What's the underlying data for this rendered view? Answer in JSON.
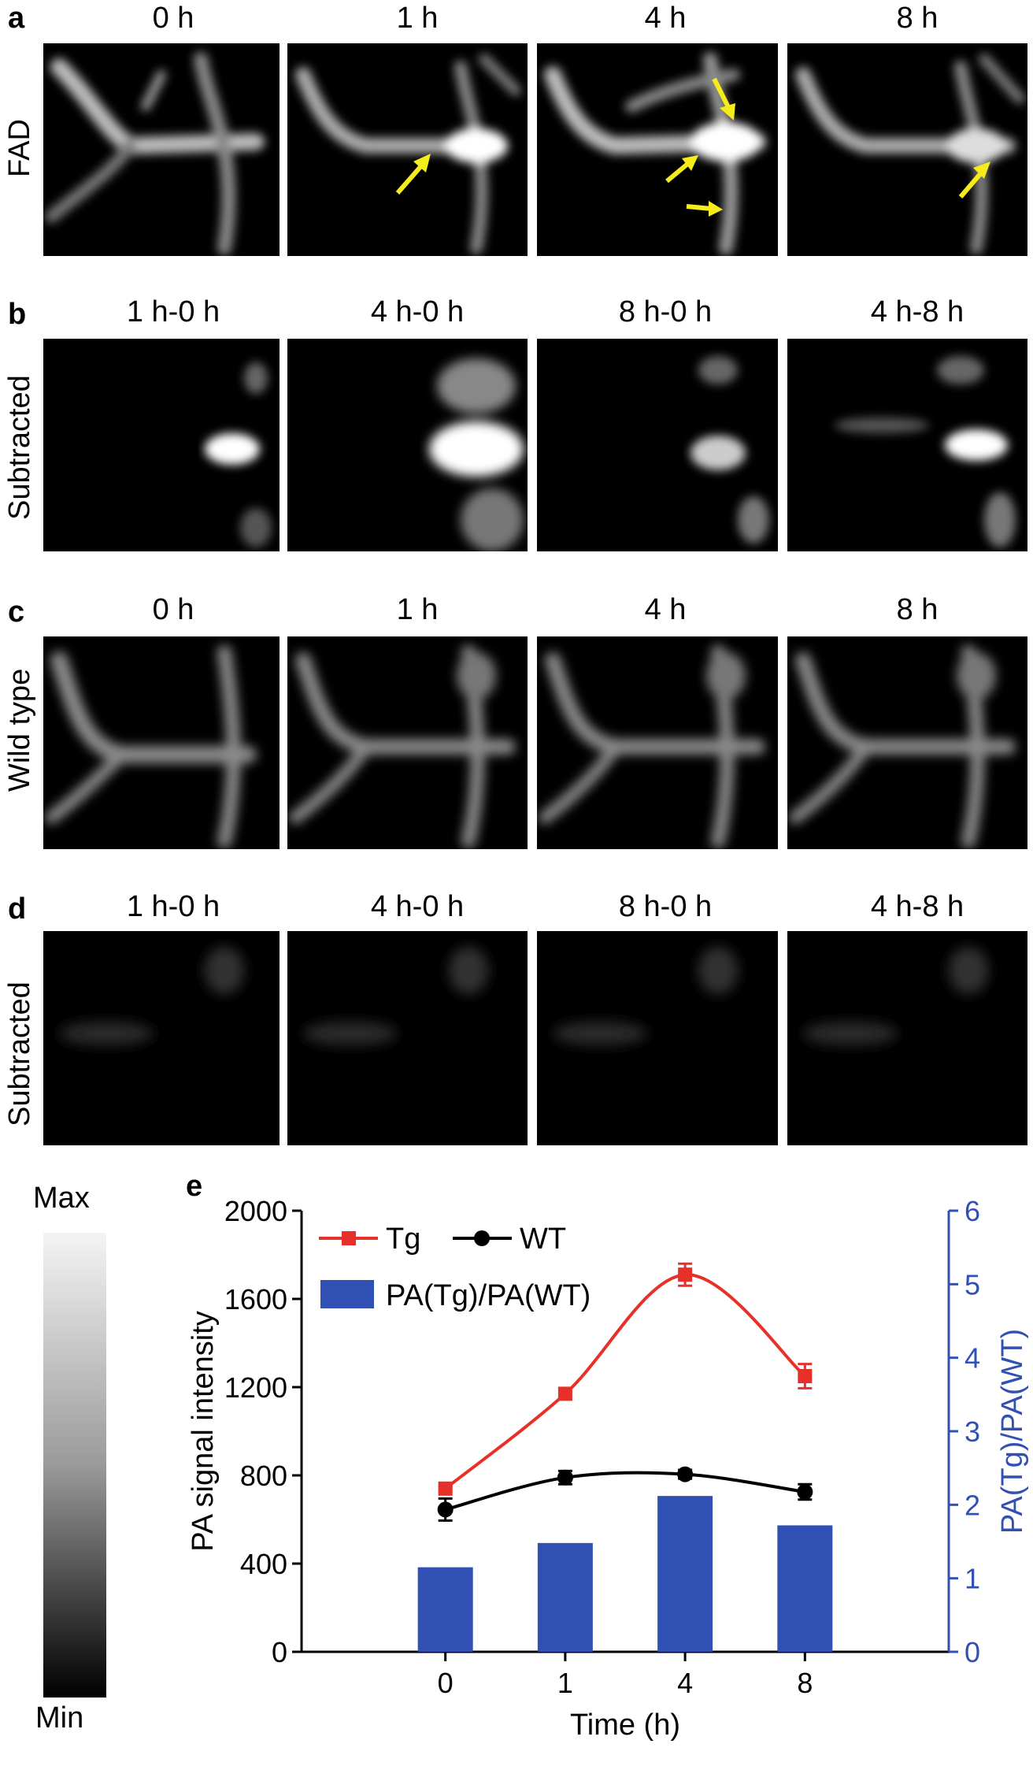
{
  "panels": [
    {
      "letter": "a",
      "row_label": "FAD",
      "cols": [
        "0 h",
        "1 h",
        "4 h",
        "8 h"
      ]
    },
    {
      "letter": "b",
      "row_label": "Subtracted",
      "cols": [
        "1 h-0 h",
        "4 h-0 h",
        "8 h-0 h",
        "4 h-8 h"
      ]
    },
    {
      "letter": "c",
      "row_label": "Wild type",
      "cols": [
        "0 h",
        "1 h",
        "4 h",
        "8 h"
      ]
    },
    {
      "letter": "d",
      "row_label": "Subtracted",
      "cols": [
        "1 h-0 h",
        "4 h-0 h",
        "8 h-0 h",
        "4 h-8 h"
      ]
    }
  ],
  "colorbar": {
    "max_label": "Max",
    "min_label": "Min"
  },
  "arrow_color": "#f5ec1c",
  "chart_letter": "e",
  "chart_data": {
    "type": "bar",
    "categories": [
      "0",
      "1",
      "4",
      "8"
    ],
    "xlabel": "Time (h)",
    "ylabel": "PA signal intensity",
    "y2label": "PA(Tg)/PA(WT)",
    "ylim": [
      0,
      2000
    ],
    "yticks": [
      "0",
      "400",
      "800",
      "1200",
      "1600",
      "2000"
    ],
    "y2lim": [
      0,
      6
    ],
    "y2ticks": [
      "0",
      "1",
      "2",
      "3",
      "4",
      "5",
      "6"
    ],
    "series": [
      {
        "name": "Tg",
        "kind": "line",
        "axis": "left",
        "color": "#e8302a",
        "marker": "square",
        "values": [
          740,
          1170,
          1710,
          1250
        ],
        "errors": [
          10,
          25,
          50,
          55
        ]
      },
      {
        "name": "WT",
        "kind": "line",
        "axis": "left",
        "color": "#000000",
        "marker": "circle",
        "values": [
          645,
          790,
          805,
          725
        ],
        "errors": [
          50,
          30,
          20,
          35
        ]
      },
      {
        "name": "PA(Tg)/PA(WT)",
        "kind": "bar",
        "axis": "right",
        "color": "#3150b3",
        "values": [
          1.15,
          1.48,
          2.12,
          1.72
        ]
      }
    ],
    "legend_position": "top-left"
  }
}
